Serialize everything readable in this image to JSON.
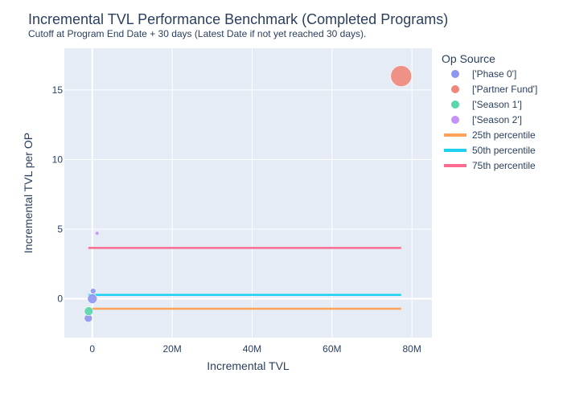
{
  "chart_data": {
    "type": "scatter",
    "title": "Incremental TVL Performance Benchmark (Completed Programs)",
    "subtitle": "Cutoff at Program End Date + 30 days (Latest Date if not yet reached 30 days).",
    "xlabel": "Incremental TVL",
    "ylabel": "Incremental TVL per OP",
    "xlim": [
      -7000000,
      85000000
    ],
    "ylim": [
      -2.8,
      18.0
    ],
    "x_ticks": [
      {
        "value": 0,
        "label": "0"
      },
      {
        "value": 20000000,
        "label": "20M"
      },
      {
        "value": 40000000,
        "label": "40M"
      },
      {
        "value": 60000000,
        "label": "60M"
      },
      {
        "value": 80000000,
        "label": "80M"
      }
    ],
    "y_ticks": [
      {
        "value": 0,
        "label": "0"
      },
      {
        "value": 5,
        "label": "5"
      },
      {
        "value": 10,
        "label": "10"
      },
      {
        "value": 15,
        "label": "15"
      }
    ],
    "grid": true,
    "legend": {
      "title": "Op Source",
      "position": "right"
    },
    "series": [
      {
        "name": "['Phase 0']",
        "color": "#8c96f3",
        "points": [
          {
            "x": -1000000,
            "y": -1.4,
            "size": 5
          },
          {
            "x": 0,
            "y": 0.0,
            "size": 6
          },
          {
            "x": 200000,
            "y": 0.55,
            "size": 3.5
          }
        ]
      },
      {
        "name": "['Partner Fund']",
        "color": "#f0877a",
        "points": [
          {
            "x": 77300000,
            "y": 16.0,
            "size": 13
          }
        ]
      },
      {
        "name": "['Season 1']",
        "color": "#5bd6ab",
        "points": [
          {
            "x": -900000,
            "y": -0.9,
            "size": 5.5
          }
        ]
      },
      {
        "name": "['Season 2']",
        "color": "#c393f7",
        "points": [
          {
            "x": 1200000,
            "y": 4.7,
            "size": 2.5
          }
        ]
      }
    ],
    "lines": [
      {
        "name": "25th percentile",
        "color": "#fca25b",
        "y": -0.72,
        "x_start": -1000000,
        "x_end": 77300000
      },
      {
        "name": "50th percentile",
        "color": "#1fd1f0",
        "y": 0.28,
        "x_start": -1000000,
        "x_end": 77300000
      },
      {
        "name": "75th percentile",
        "color": "#fb6c90",
        "y": 3.65,
        "x_start": -1000000,
        "x_end": 77300000
      }
    ]
  }
}
